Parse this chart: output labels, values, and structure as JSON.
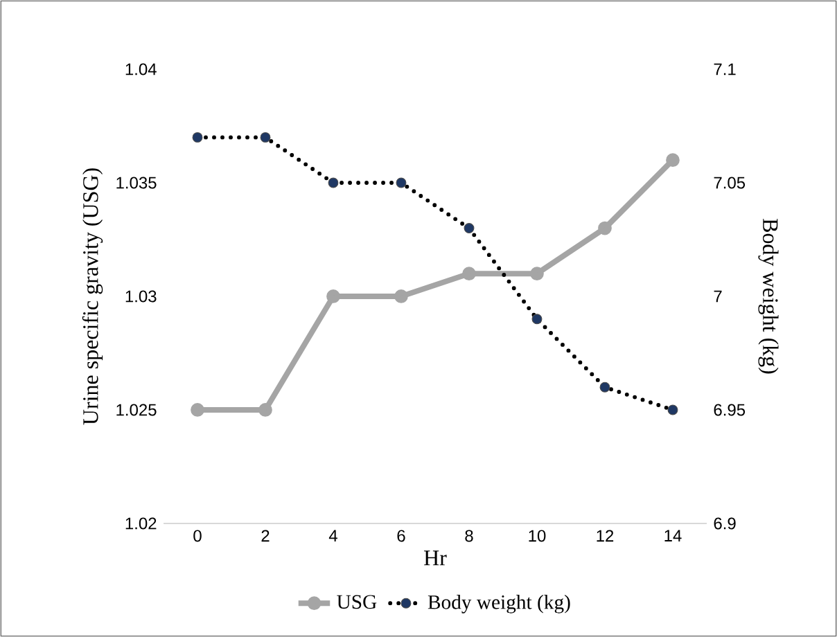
{
  "chart_data": {
    "type": "line",
    "xlabel": "Hr",
    "ylabel": "Urine specific gravity (USG)",
    "y2label": "Body weight (kg)",
    "categories": [
      "0",
      "2",
      "4",
      "6",
      "8",
      "10",
      "12",
      "14"
    ],
    "series": [
      {
        "name": "USG",
        "color": "#a5a5a5",
        "line_style": "solid",
        "values": [
          1.025,
          1.025,
          1.03,
          1.03,
          1.031,
          1.031,
          1.033,
          1.036
        ]
      },
      {
        "name": "Body weight (kg)",
        "color": "#1f3864",
        "line_style": "dotted",
        "axis": "y2",
        "values": [
          7.07,
          7.07,
          7.05,
          7.05,
          7.03,
          6.99,
          6.96,
          6.95
        ]
      }
    ],
    "ylim": [
      1.02,
      1.04
    ],
    "yticks": [
      1.02,
      1.025,
      1.03,
      1.035,
      1.04
    ],
    "y2lim": [
      6.9,
      7.1
    ],
    "y2ticks": [
      6.9,
      6.95,
      7,
      7.05,
      7.1
    ],
    "marker": "circle",
    "legend": "bottom",
    "grid": false
  }
}
